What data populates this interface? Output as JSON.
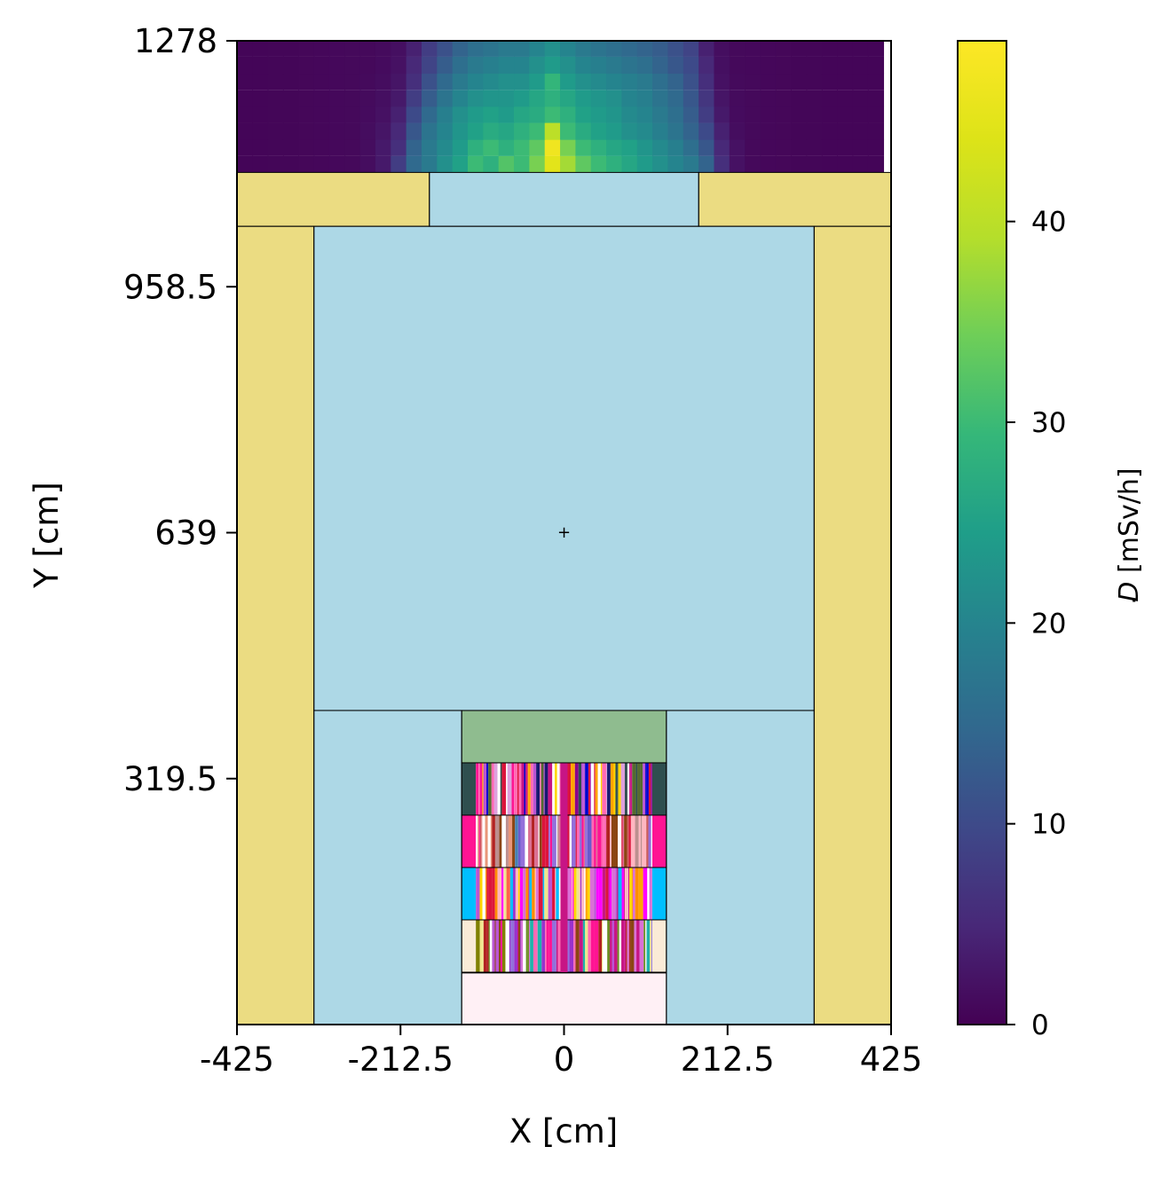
{
  "chart_data": {
    "type": "heatmap",
    "xlabel": "X [cm]",
    "ylabel": "Y [cm]",
    "xlim": [
      -425,
      425
    ],
    "ylim": [
      0,
      1278
    ],
    "x_ticks": [
      -425,
      -212.5,
      0,
      212.5,
      425
    ],
    "x_tick_labels": [
      "-425",
      "-212.5",
      "0",
      "212.5",
      "425"
    ],
    "y_ticks": [
      319.5,
      639,
      958.5,
      1278
    ],
    "y_tick_labels": [
      "319.5",
      "639",
      "958.5",
      "1278"
    ],
    "colorbar": {
      "label": "D [mSv/h]",
      "label_symbol": "D",
      "label_unit": "[mSv/h]",
      "colormap": "viridis",
      "range": [
        0,
        49
      ],
      "ticks": [
        0,
        10,
        20,
        30,
        40
      ],
      "tick_labels": [
        "0",
        "10",
        "20",
        "30",
        "40"
      ]
    },
    "dose_rate_map": {
      "region": {
        "x": [
          -425,
          425
        ],
        "y": [
          1107,
          1278
        ]
      },
      "columns_x_center": [
        -415,
        -395,
        -375,
        -355,
        -335,
        -315,
        -295,
        -275,
        -255,
        -235,
        -215,
        -195,
        -175,
        -155,
        -135,
        -115,
        -95,
        -75,
        -55,
        -35,
        -15,
        5,
        25,
        45,
        65,
        85,
        105,
        125,
        145,
        165,
        185,
        205,
        225,
        245,
        265,
        285,
        305,
        325,
        345,
        365,
        385,
        405
      ],
      "rows_y_bottom": [
        1107,
        1129,
        1150,
        1172,
        1193,
        1215,
        1236,
        1258
      ],
      "values": [
        [
          0.5,
          0.5,
          0.6,
          0.6,
          0.7,
          0.8,
          0.9,
          1,
          1.5,
          3,
          8,
          15,
          18,
          22,
          25,
          30,
          28,
          32,
          30,
          35,
          45,
          38,
          33,
          30,
          28,
          26,
          24,
          22,
          20,
          18,
          14,
          6,
          2,
          1,
          0.8,
          0.7,
          0.6,
          0.6,
          0.5,
          0.5,
          0.5,
          0.5
        ],
        [
          0.5,
          0.5,
          0.6,
          0.6,
          0.7,
          0.8,
          0.9,
          1,
          1.5,
          3,
          6,
          14,
          18,
          21,
          24,
          28,
          30,
          28,
          30,
          33,
          47,
          35,
          30,
          28,
          26,
          25,
          23,
          21,
          19,
          16,
          12,
          5,
          2,
          1,
          0.8,
          0.7,
          0.6,
          0.6,
          0.5,
          0.5,
          0.5,
          0.5
        ],
        [
          0.5,
          0.5,
          0.6,
          0.6,
          0.7,
          0.8,
          0.9,
          1,
          1.5,
          2.5,
          5,
          12,
          17,
          20,
          23,
          25,
          27,
          26,
          28,
          30,
          40,
          30,
          27,
          25,
          24,
          22,
          21,
          19,
          17,
          14,
          10,
          4,
          1.5,
          1,
          0.8,
          0.7,
          0.6,
          0.6,
          0.5,
          0.5,
          0.5,
          0.5
        ],
        [
          0.5,
          0.5,
          0.6,
          0.6,
          0.7,
          0.8,
          0.9,
          1,
          1.3,
          2,
          4,
          10,
          15,
          19,
          22,
          24,
          25,
          24,
          26,
          27,
          30,
          28,
          25,
          24,
          23,
          21,
          20,
          18,
          16,
          13,
          8,
          3,
          1.3,
          1,
          0.8,
          0.7,
          0.6,
          0.6,
          0.5,
          0.5,
          0.5,
          0.5
        ],
        [
          0.5,
          0.5,
          0.6,
          0.6,
          0.7,
          0.8,
          0.9,
          1,
          1.2,
          1.8,
          3,
          8,
          13,
          17,
          20,
          22,
          23,
          23,
          24,
          26,
          28,
          26,
          24,
          23,
          22,
          20,
          19,
          17,
          15,
          12,
          7,
          2.5,
          1.2,
          1,
          0.8,
          0.7,
          0.6,
          0.6,
          0.5,
          0.5,
          0.5,
          0.5
        ],
        [
          0.5,
          0.5,
          0.6,
          0.6,
          0.7,
          0.8,
          0.9,
          1,
          1.1,
          1.5,
          2.5,
          6,
          11,
          15,
          18,
          20,
          21,
          22,
          22,
          24,
          29,
          24,
          22,
          21,
          20,
          19,
          18,
          16,
          14,
          11,
          6,
          2,
          1.1,
          1,
          0.8,
          0.7,
          0.6,
          0.6,
          0.5,
          0.5,
          0.5,
          0.5
        ],
        [
          0.5,
          0.5,
          0.6,
          0.6,
          0.7,
          0.8,
          0.9,
          1,
          1,
          1.3,
          2,
          5,
          9,
          13,
          16,
          18,
          19,
          20,
          20,
          22,
          24,
          22,
          20,
          19,
          18,
          17,
          16,
          14,
          12,
          10,
          5,
          1.8,
          1,
          0.9,
          0.8,
          0.7,
          0.6,
          0.6,
          0.5,
          0.5,
          0.5,
          0.5
        ],
        [
          0.5,
          0.5,
          0.6,
          0.6,
          0.7,
          0.8,
          0.9,
          1,
          1,
          1.2,
          1.8,
          4,
          8,
          11,
          14,
          16,
          17,
          18,
          18,
          20,
          22,
          20,
          18,
          17,
          16,
          15,
          14,
          13,
          11,
          9,
          4,
          1.6,
          1,
          0.9,
          0.8,
          0.7,
          0.6,
          0.6,
          0.5,
          0.5,
          0.5,
          0.5
        ]
      ]
    },
    "geometry_regions": [
      {
        "name": "concrete-wall-left",
        "color": "#ebdc82",
        "x": [
          -425,
          -325
        ],
        "y": [
          0,
          1037
        ]
      },
      {
        "name": "concrete-wall-right",
        "color": "#ebdc82",
        "x": [
          325,
          425
        ],
        "y": [
          0,
          1037
        ]
      },
      {
        "name": "concrete-roof-left",
        "color": "#ebdc82",
        "x": [
          -425,
          -175
        ],
        "y": [
          1037,
          1107
        ]
      },
      {
        "name": "concrete-roof-right",
        "color": "#ebdc82",
        "x": [
          175,
          425
        ],
        "y": [
          1037,
          1107
        ]
      },
      {
        "name": "water-opening",
        "color": "#add8e6",
        "x": [
          -175,
          175
        ],
        "y": [
          1037,
          1107
        ]
      },
      {
        "name": "water-pool-upper",
        "color": "#add8e6",
        "x": [
          -325,
          325
        ],
        "y": [
          408,
          1037
        ]
      },
      {
        "name": "water-pool-lower-left",
        "color": "#add8e6",
        "x": [
          -325,
          -133
        ],
        "y": [
          0,
          408
        ]
      },
      {
        "name": "water-pool-lower-right",
        "color": "#add8e6",
        "x": [
          133,
          325
        ],
        "y": [
          0,
          408
        ]
      },
      {
        "name": "rack-top-plate",
        "color": "#8fbc8f",
        "x": [
          -133,
          133
        ],
        "y": [
          340,
          408
        ]
      },
      {
        "name": "rack-bottom-plate",
        "color": "#fff0f5",
        "x": [
          -133,
          133
        ],
        "y": [
          0,
          67
        ]
      }
    ],
    "fuel_tiers": [
      {
        "y": [
          272,
          340
        ],
        "edge": "#2f4f4f",
        "palette": [
          "#2f4f4f",
          "#556b2f",
          "#dda0dd",
          "#ff69b4",
          "#c71585",
          "#ba55d3",
          "#ffffff",
          "#ff1493",
          "#8b008b",
          "#191970",
          "#0000cd",
          "#ffd700",
          "#ffa500",
          "#dc143c"
        ]
      },
      {
        "y": [
          204,
          272
        ],
        "edge": "#ff1493",
        "palette": [
          "#ff1493",
          "#6a5acd",
          "#dc143c",
          "#ff69b4",
          "#cd5c5c",
          "#ffffff",
          "#b22222",
          "#9370db",
          "#ffb6c1",
          "#bc8f8f",
          "#db7093",
          "#4682b4",
          "#e9967a",
          "#8b4513"
        ]
      },
      {
        "y": [
          136,
          204
        ],
        "edge": "#00bfff",
        "palette": [
          "#00bfff",
          "#ff8c00",
          "#9932cc",
          "#ff00ff",
          "#ffb6c1",
          "#ffffff",
          "#c71585",
          "#ffd700",
          "#ff6347",
          "#da70d6",
          "#ba55d3",
          "#ffa500",
          "#dc143c",
          "#f0e68c"
        ]
      },
      {
        "y": [
          68,
          136
        ],
        "edge": "#faebd7",
        "palette": [
          "#9932cc",
          "#ffffff",
          "#c71585",
          "#ba55d3",
          "#ff69b4",
          "#808000",
          "#6b8e23",
          "#da70d6",
          "#b22222",
          "#20b2aa",
          "#ff1493",
          "#f0e68c",
          "#9370db",
          "#8b4513"
        ]
      }
    ],
    "center_rod_color": "#c71585",
    "source_marker": {
      "x": 0,
      "y": 639,
      "symbol": "+"
    }
  }
}
